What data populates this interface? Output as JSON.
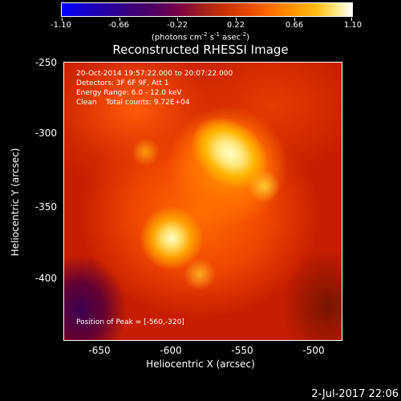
{
  "colorbar": {
    "ticks": [
      "-1.10",
      "-0.66",
      "-0.22",
      "0.22",
      "0.66",
      "1.10"
    ],
    "units_prefix": "(photons cm",
    "units_exp1": "-2",
    "units_mid1": " s",
    "units_exp2": "-1",
    "units_mid2": " asec",
    "units_exp3": "-2",
    "units_suffix": ")"
  },
  "title": "Reconstructed RHESSI Image",
  "info": {
    "time": "20-Oct-2014 19:57:22.000 to 20:07:22.000",
    "detectors": "Detectors: 3F 6F 9F, Att 1",
    "energy": "Energy Range: 6.0 - 12.0 keV",
    "clean": "Clean    Total counts: 9.72E+04",
    "peak": "Position of Peak = [-560,-320]"
  },
  "axes": {
    "xlabel": "Heliocentric X (arcsec)",
    "ylabel": "Heliocentric Y (arcsec)",
    "xticks": [
      "-650",
      "-600",
      "-550",
      "-500"
    ],
    "yticks": [
      "-250",
      "-300",
      "-350",
      "-400"
    ]
  },
  "timestamp": "2-Jul-2017 22:06",
  "colors": {
    "background": "#000000",
    "map_base": "#c81e00",
    "peak_color": "#ffffc8"
  }
}
